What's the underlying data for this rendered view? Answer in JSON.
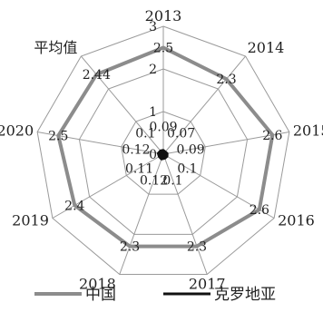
{
  "chart_data": {
    "type": "radar",
    "categories": [
      "2013",
      "2014",
      "2015",
      "2016",
      "2017",
      "2018",
      "2019",
      "2020",
      "平均值"
    ],
    "rlim": [
      0,
      3
    ],
    "r_ticks": [
      0,
      1,
      2,
      3
    ],
    "grid": true,
    "legend_position": "bottom",
    "series": [
      {
        "name": "中国",
        "color": "#8c8c8c",
        "values": [
          2.5,
          2.3,
          2.6,
          2.6,
          2.3,
          2.3,
          2.4,
          2.5,
          2.44
        ],
        "labels": [
          "2.5",
          "2.3",
          "2.6",
          "2.6",
          "2.3",
          "2.3",
          "2.4",
          "2.5",
          "2.44"
        ]
      },
      {
        "name": "克罗地亚",
        "color": "#111111",
        "values": [
          0.09,
          0.07,
          0.09,
          0.1,
          0.1,
          0.12,
          0.11,
          0.12,
          0.1
        ],
        "labels": [
          "0.09",
          "0.07",
          "0.09",
          "0.1",
          "0.1",
          "0.12",
          "0.11",
          "0.12",
          "0.1"
        ]
      }
    ]
  }
}
